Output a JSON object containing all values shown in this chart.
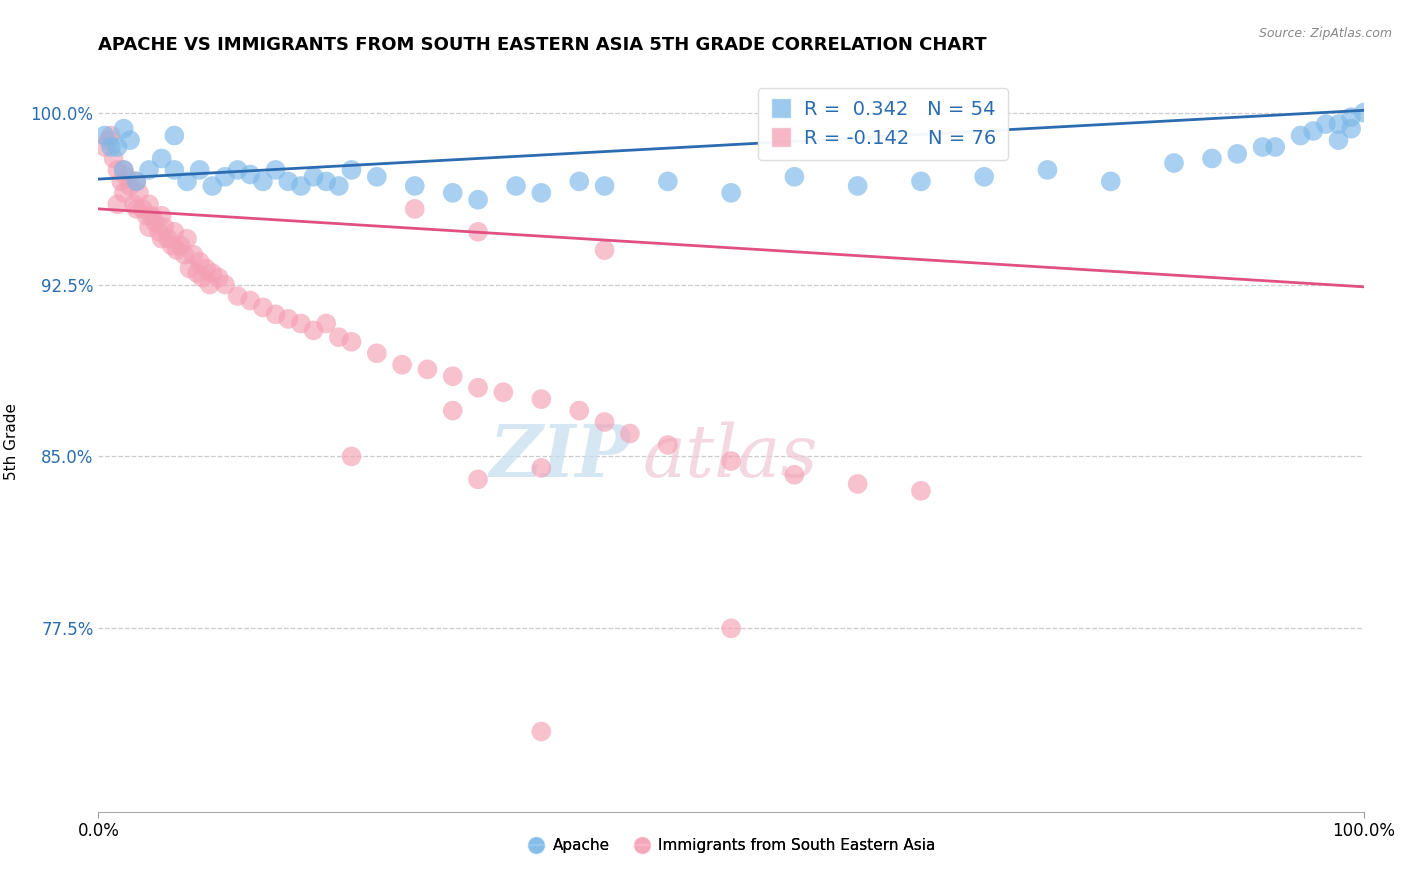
{
  "title": "APACHE VS IMMIGRANTS FROM SOUTH EASTERN ASIA 5TH GRADE CORRELATION CHART",
  "source": "Source: ZipAtlas.com",
  "ylabel": "5th Grade",
  "xlim": [
    0.0,
    1.0
  ],
  "ylim": [
    0.695,
    1.018
  ],
  "yticks": [
    0.775,
    0.85,
    0.925,
    1.0
  ],
  "ytick_labels": [
    "77.5%",
    "85.0%",
    "92.5%",
    "100.0%"
  ],
  "blue_color": "#7bb8e8",
  "pink_color": "#f4a0b5",
  "blue_line_color": "#2b6cb0",
  "pink_line_color": "#e05080",
  "blue_line": [
    0.0,
    1.0,
    0.971,
    1.001
  ],
  "pink_line": [
    0.0,
    1.0,
    0.958,
    0.924
  ],
  "apache_x": [
    0.005,
    0.01,
    0.015,
    0.02,
    0.02,
    0.025,
    0.03,
    0.04,
    0.05,
    0.06,
    0.06,
    0.07,
    0.08,
    0.09,
    0.1,
    0.11,
    0.12,
    0.13,
    0.14,
    0.15,
    0.16,
    0.17,
    0.18,
    0.19,
    0.2,
    0.22,
    0.25,
    0.28,
    0.3,
    0.33,
    0.35,
    0.38,
    0.4,
    0.45,
    0.5,
    0.55,
    0.6,
    0.65,
    0.7,
    0.75,
    0.8,
    0.85,
    0.88,
    0.9,
    0.92,
    0.93,
    0.95,
    0.96,
    0.97,
    0.98,
    0.99,
    1.0,
    0.98,
    0.99
  ],
  "apache_y": [
    0.99,
    0.985,
    0.985,
    0.993,
    0.975,
    0.988,
    0.97,
    0.975,
    0.98,
    0.99,
    0.975,
    0.97,
    0.975,
    0.968,
    0.972,
    0.975,
    0.973,
    0.97,
    0.975,
    0.97,
    0.968,
    0.972,
    0.97,
    0.968,
    0.975,
    0.972,
    0.968,
    0.965,
    0.962,
    0.968,
    0.965,
    0.97,
    0.968,
    0.97,
    0.965,
    0.972,
    0.968,
    0.97,
    0.972,
    0.975,
    0.97,
    0.978,
    0.98,
    0.982,
    0.985,
    0.985,
    0.99,
    0.992,
    0.995,
    0.995,
    0.998,
    1.0,
    0.988,
    0.993
  ],
  "immig_x": [
    0.005,
    0.008,
    0.01,
    0.012,
    0.015,
    0.015,
    0.018,
    0.02,
    0.02,
    0.022,
    0.025,
    0.028,
    0.03,
    0.03,
    0.032,
    0.035,
    0.038,
    0.04,
    0.04,
    0.042,
    0.045,
    0.048,
    0.05,
    0.05,
    0.052,
    0.055,
    0.058,
    0.06,
    0.062,
    0.065,
    0.068,
    0.07,
    0.072,
    0.075,
    0.078,
    0.08,
    0.082,
    0.085,
    0.088,
    0.09,
    0.095,
    0.1,
    0.11,
    0.12,
    0.13,
    0.14,
    0.15,
    0.16,
    0.17,
    0.18,
    0.19,
    0.2,
    0.22,
    0.24,
    0.26,
    0.28,
    0.3,
    0.32,
    0.35,
    0.38,
    0.4,
    0.42,
    0.45,
    0.5,
    0.55,
    0.6,
    0.65,
    0.4,
    0.25,
    0.3,
    0.2,
    0.35,
    0.5,
    0.28,
    0.35,
    0.3
  ],
  "immig_y": [
    0.985,
    0.988,
    0.99,
    0.98,
    0.975,
    0.96,
    0.97,
    0.965,
    0.975,
    0.972,
    0.968,
    0.96,
    0.97,
    0.958,
    0.965,
    0.958,
    0.955,
    0.96,
    0.95,
    0.955,
    0.952,
    0.948,
    0.955,
    0.945,
    0.95,
    0.945,
    0.942,
    0.948,
    0.94,
    0.942,
    0.938,
    0.945,
    0.932,
    0.938,
    0.93,
    0.935,
    0.928,
    0.932,
    0.925,
    0.93,
    0.928,
    0.925,
    0.92,
    0.918,
    0.915,
    0.912,
    0.91,
    0.908,
    0.905,
    0.908,
    0.902,
    0.9,
    0.895,
    0.89,
    0.888,
    0.885,
    0.88,
    0.878,
    0.875,
    0.87,
    0.865,
    0.86,
    0.855,
    0.848,
    0.842,
    0.838,
    0.835,
    0.94,
    0.958,
    0.948,
    0.85,
    0.845,
    0.775,
    0.87,
    0.73,
    0.84
  ]
}
